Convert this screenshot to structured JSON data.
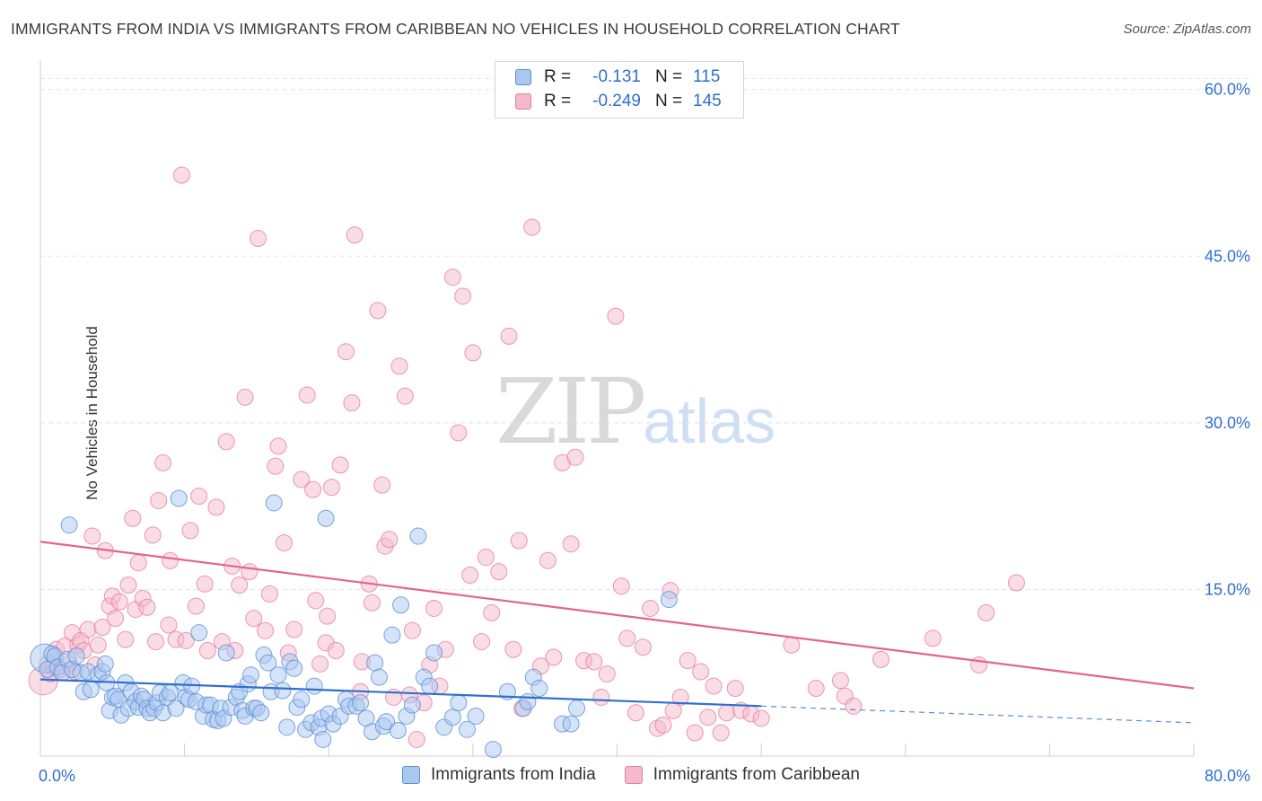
{
  "title": "IMMIGRANTS FROM INDIA VS IMMIGRANTS FROM CARIBBEAN NO VEHICLES IN HOUSEHOLD CORRELATION CHART",
  "source": "Source: ZipAtlas.com",
  "watermark": {
    "zip": "ZIP",
    "atlas": "atlas"
  },
  "legend": {
    "india": {
      "r_label": "R =",
      "r_value": "-0.131",
      "n_label": "N =",
      "n_value": "115"
    },
    "caribbean": {
      "r_label": "R =",
      "r_value": "-0.249",
      "n_label": "N =",
      "n_value": "145"
    }
  },
  "colors": {
    "india_fill": "#a9c8f0",
    "india_stroke": "#5b8fd6",
    "india_line": "#2f6fcf",
    "carib_fill": "#f6b9cc",
    "carib_stroke": "#e67ea0",
    "carib_line": "#e2648e",
    "tick_label": "#2f6fcf"
  },
  "chart_data": {
    "type": "scatter",
    "title": "IMMIGRANTS FROM INDIA VS IMMIGRANTS FROM CARIBBEAN NO VEHICLES IN HOUSEHOLD CORRELATION CHART",
    "xlabel": "",
    "ylabel": "No Vehicles in Household",
    "xlim": [
      0,
      80
    ],
    "ylim": [
      0,
      62
    ],
    "x_tick_labels": [
      "0.0%",
      "80.0%"
    ],
    "y_ticks": [
      15,
      30,
      45,
      60
    ],
    "y_tick_labels": [
      "15.0%",
      "30.0%",
      "45.0%",
      "60.0%"
    ],
    "grid": true,
    "legend_position": "top-center",
    "series": [
      {
        "name": "Immigrants from India",
        "trend": {
          "x": [
            0,
            50
          ],
          "y": [
            6.9,
            4.5
          ],
          "dashed_to": [
            80,
            3.0
          ]
        },
        "points": [
          [
            0.3,
            8.8,
            "L"
          ],
          [
            0.5,
            7.8
          ],
          [
            0.8,
            9.2
          ],
          [
            1,
            9
          ],
          [
            1.2,
            8
          ],
          [
            1.5,
            7.5
          ],
          [
            1.9,
            8.7
          ],
          [
            2,
            20.8
          ],
          [
            2.2,
            7.8
          ],
          [
            2.5,
            9
          ],
          [
            2.8,
            7.5
          ],
          [
            3,
            5.8
          ],
          [
            3.3,
            7.6
          ],
          [
            3.5,
            6
          ],
          [
            4,
            7.3
          ],
          [
            4.3,
            7.6
          ],
          [
            4.5,
            8.3
          ],
          [
            4.6,
            6.6
          ],
          [
            4.8,
            4.1
          ],
          [
            5,
            5.3
          ],
          [
            5.2,
            5.4
          ],
          [
            5.4,
            5.1
          ],
          [
            5.6,
            3.7
          ],
          [
            5.9,
            6.6
          ],
          [
            6.1,
            4.3
          ],
          [
            6.3,
            5.8
          ],
          [
            6.6,
            4.9
          ],
          [
            6.8,
            4.4
          ],
          [
            7,
            5.4
          ],
          [
            7.2,
            5.1
          ],
          [
            7.4,
            4.3
          ],
          [
            7.6,
            3.9
          ],
          [
            7.9,
            4.3
          ],
          [
            8.1,
            4.8
          ],
          [
            8.3,
            5.7
          ],
          [
            8.5,
            3.9
          ],
          [
            8.8,
            5.3
          ],
          [
            9,
            5.7
          ],
          [
            9.4,
            4.3
          ],
          [
            9.6,
            23.2
          ],
          [
            9.9,
            6.6
          ],
          [
            10.1,
            5.3
          ],
          [
            10.3,
            5.1
          ],
          [
            10.5,
            6.3
          ],
          [
            10.8,
            4.9
          ],
          [
            11,
            11.1
          ],
          [
            11.3,
            3.6
          ],
          [
            11.5,
            4.6
          ],
          [
            11.8,
            4.6
          ],
          [
            12,
            3.3
          ],
          [
            12.3,
            3.2
          ],
          [
            12.5,
            4.3
          ],
          [
            12.7,
            3.4
          ],
          [
            12.9,
            9.3
          ],
          [
            13.2,
            4.4
          ],
          [
            13.6,
            5.3
          ],
          [
            13.8,
            5.8
          ],
          [
            14,
            4.1
          ],
          [
            14.2,
            3.6
          ],
          [
            14.4,
            6.5
          ],
          [
            14.6,
            7.3
          ],
          [
            14.8,
            4.3
          ],
          [
            15,
            4.3
          ],
          [
            15.3,
            3.9
          ],
          [
            15.5,
            9.1
          ],
          [
            15.8,
            8.4
          ],
          [
            16,
            5.8
          ],
          [
            16.2,
            22.8
          ],
          [
            16.5,
            7.3
          ],
          [
            16.8,
            5.9
          ],
          [
            17.1,
            2.6
          ],
          [
            17.3,
            8.5
          ],
          [
            17.6,
            7.9
          ],
          [
            17.8,
            4.4
          ],
          [
            18.1,
            5.1
          ],
          [
            18.4,
            2.4
          ],
          [
            18.8,
            3
          ],
          [
            19,
            6.3
          ],
          [
            19.3,
            2.6
          ],
          [
            19.5,
            3.4
          ],
          [
            19.6,
            1.5
          ],
          [
            19.8,
            21.4
          ],
          [
            20,
            3.8
          ],
          [
            20.3,
            2.9
          ],
          [
            20.8,
            3.6
          ],
          [
            21.2,
            5.1
          ],
          [
            21.4,
            4.5
          ],
          [
            21.9,
            4.5
          ],
          [
            22.2,
            4.8
          ],
          [
            22.6,
            3.4
          ],
          [
            23,
            2.2
          ],
          [
            23.2,
            8.4
          ],
          [
            23.5,
            7.1
          ],
          [
            23.8,
            2.7
          ],
          [
            24,
            3.1
          ],
          [
            24.4,
            10.9
          ],
          [
            24.8,
            2.3
          ],
          [
            25,
            13.6
          ],
          [
            25.4,
            3.6
          ],
          [
            25.8,
            4.6
          ],
          [
            26.2,
            19.8
          ],
          [
            26.6,
            7.1
          ],
          [
            27,
            6.3
          ],
          [
            27.3,
            9.3
          ],
          [
            28,
            2.6
          ],
          [
            28.6,
            3.5
          ],
          [
            29,
            4.8
          ],
          [
            29.6,
            2.4
          ],
          [
            30.2,
            3.6
          ],
          [
            31.4,
            0.6
          ],
          [
            32.4,
            5.8
          ],
          [
            33.5,
            4.3
          ],
          [
            33.8,
            4.9
          ],
          [
            34.2,
            7.1
          ],
          [
            34.6,
            6.1
          ],
          [
            36.2,
            2.9
          ],
          [
            36.8,
            2.9
          ],
          [
            37.2,
            4.3
          ],
          [
            43.6,
            14.1
          ]
        ]
      },
      {
        "name": "Immigrants from Caribbean",
        "trend": {
          "x": [
            0,
            80
          ],
          "y": [
            19.3,
            6.1
          ]
        },
        "points": [
          [
            0.2,
            6.8,
            "L"
          ],
          [
            0.5,
            8.3
          ],
          [
            0.7,
            7.4
          ],
          [
            0.9,
            8
          ],
          [
            1.1,
            9.6
          ],
          [
            1.4,
            7.8
          ],
          [
            1.7,
            9.9
          ],
          [
            2,
            8.3
          ],
          [
            2.2,
            11.1
          ],
          [
            2.4,
            7.6
          ],
          [
            2.6,
            10
          ],
          [
            2.8,
            10.4
          ],
          [
            3,
            9.5
          ],
          [
            3.3,
            11.4
          ],
          [
            3.6,
            19.8
          ],
          [
            3.8,
            8.2
          ],
          [
            4,
            10
          ],
          [
            4.3,
            11.6
          ],
          [
            4.5,
            18.5
          ],
          [
            4.8,
            13.5
          ],
          [
            5,
            14.4
          ],
          [
            5.2,
            12.4
          ],
          [
            5.5,
            13.9
          ],
          [
            5.9,
            10.5
          ],
          [
            6.1,
            15.4
          ],
          [
            6.4,
            21.4
          ],
          [
            6.6,
            13.2
          ],
          [
            6.8,
            17.4
          ],
          [
            7.1,
            14.2
          ],
          [
            7.4,
            13.4
          ],
          [
            7.8,
            19.9
          ],
          [
            8,
            10.3
          ],
          [
            8.2,
            23
          ],
          [
            8.5,
            26.4
          ],
          [
            8.9,
            11.8
          ],
          [
            9,
            17.6
          ],
          [
            9.4,
            10.5
          ],
          [
            9.8,
            52.3
          ],
          [
            10.1,
            10.4
          ],
          [
            10.4,
            20.3
          ],
          [
            10.8,
            13.5
          ],
          [
            11,
            23.4
          ],
          [
            11.4,
            15.5
          ],
          [
            11.6,
            9.5
          ],
          [
            12.2,
            22.4
          ],
          [
            12.6,
            10.3
          ],
          [
            12.9,
            28.3
          ],
          [
            13.3,
            17.1
          ],
          [
            13.5,
            9.5
          ],
          [
            13.8,
            15.4
          ],
          [
            14.2,
            32.3
          ],
          [
            14.5,
            16.6
          ],
          [
            14.8,
            12.4
          ],
          [
            15.1,
            46.6
          ],
          [
            15.6,
            11.3
          ],
          [
            15.9,
            14.6
          ],
          [
            16.3,
            26.1
          ],
          [
            16.5,
            27.9
          ],
          [
            16.9,
            19.2
          ],
          [
            17.2,
            9.3
          ],
          [
            17.6,
            11.4
          ],
          [
            18.1,
            24.9
          ],
          [
            18.5,
            32.5
          ],
          [
            18.9,
            24
          ],
          [
            19.1,
            14
          ],
          [
            19.4,
            8.3
          ],
          [
            19.8,
            10.2
          ],
          [
            19.9,
            12.6
          ],
          [
            20.2,
            24.2
          ],
          [
            20.5,
            9.5
          ],
          [
            20.8,
            26.2
          ],
          [
            21.2,
            36.4
          ],
          [
            21.6,
            31.8
          ],
          [
            21.8,
            46.9
          ],
          [
            22.2,
            5.8
          ],
          [
            22.3,
            8.5
          ],
          [
            22.8,
            15.5
          ],
          [
            23,
            13.8
          ],
          [
            23.4,
            40.1
          ],
          [
            23.7,
            24.4
          ],
          [
            23.9,
            18.9
          ],
          [
            24.2,
            19.5
          ],
          [
            24.5,
            5.3
          ],
          [
            24.9,
            35.1
          ],
          [
            25.3,
            32.4
          ],
          [
            25.6,
            5.5
          ],
          [
            25.8,
            11.3
          ],
          [
            26.1,
            1.5
          ],
          [
            26.6,
            4.8
          ],
          [
            27,
            8.2
          ],
          [
            27.3,
            13.3
          ],
          [
            27.7,
            6.3
          ],
          [
            28.1,
            9.6
          ],
          [
            28.6,
            43.1
          ],
          [
            29,
            29.1
          ],
          [
            29.3,
            41.4
          ],
          [
            29.8,
            16.3
          ],
          [
            30,
            36.3
          ],
          [
            30.6,
            10.3
          ],
          [
            30.9,
            17.9
          ],
          [
            31.3,
            12.9
          ],
          [
            31.8,
            16.6
          ],
          [
            32.5,
            37.8
          ],
          [
            32.8,
            9.6
          ],
          [
            33.2,
            19.4
          ],
          [
            33.4,
            4.3
          ],
          [
            34.1,
            47.6
          ],
          [
            34.7,
            8.1
          ],
          [
            35.2,
            17.6
          ],
          [
            35.6,
            8.9
          ],
          [
            36.2,
            26.4
          ],
          [
            36.8,
            19.1
          ],
          [
            37.1,
            26.9
          ],
          [
            37.7,
            8.6
          ],
          [
            38.4,
            8.5
          ],
          [
            38.9,
            5.3
          ],
          [
            39.3,
            7.4
          ],
          [
            39.9,
            39.6
          ],
          [
            40.3,
            15.3
          ],
          [
            40.7,
            10.6
          ],
          [
            41.3,
            3.9
          ],
          [
            41.8,
            9.8
          ],
          [
            42.3,
            13.3
          ],
          [
            42.8,
            2.5
          ],
          [
            43.2,
            2.8
          ],
          [
            43.7,
            14.9
          ],
          [
            43.9,
            4.1
          ],
          [
            44.4,
            5.3
          ],
          [
            44.9,
            8.6
          ],
          [
            45.4,
            2.1
          ],
          [
            45.8,
            7.6
          ],
          [
            46.3,
            3.5
          ],
          [
            46.7,
            6.3
          ],
          [
            47.2,
            2.1
          ],
          [
            47.6,
            3.9
          ],
          [
            48.2,
            6.1
          ],
          [
            48.6,
            4.1
          ],
          [
            49.3,
            3.8
          ],
          [
            50,
            3.4
          ],
          [
            52.1,
            10
          ],
          [
            53.8,
            6.1
          ],
          [
            55.5,
            6.8
          ],
          [
            55.8,
            5.4
          ],
          [
            56.4,
            4.5
          ],
          [
            58.3,
            8.7
          ],
          [
            61.9,
            10.6
          ],
          [
            65.1,
            8.2
          ],
          [
            65.6,
            12.9
          ],
          [
            67.7,
            15.6
          ]
        ]
      }
    ]
  },
  "bottom_legend": [
    "Immigrants from India",
    "Immigrants from Caribbean"
  ]
}
